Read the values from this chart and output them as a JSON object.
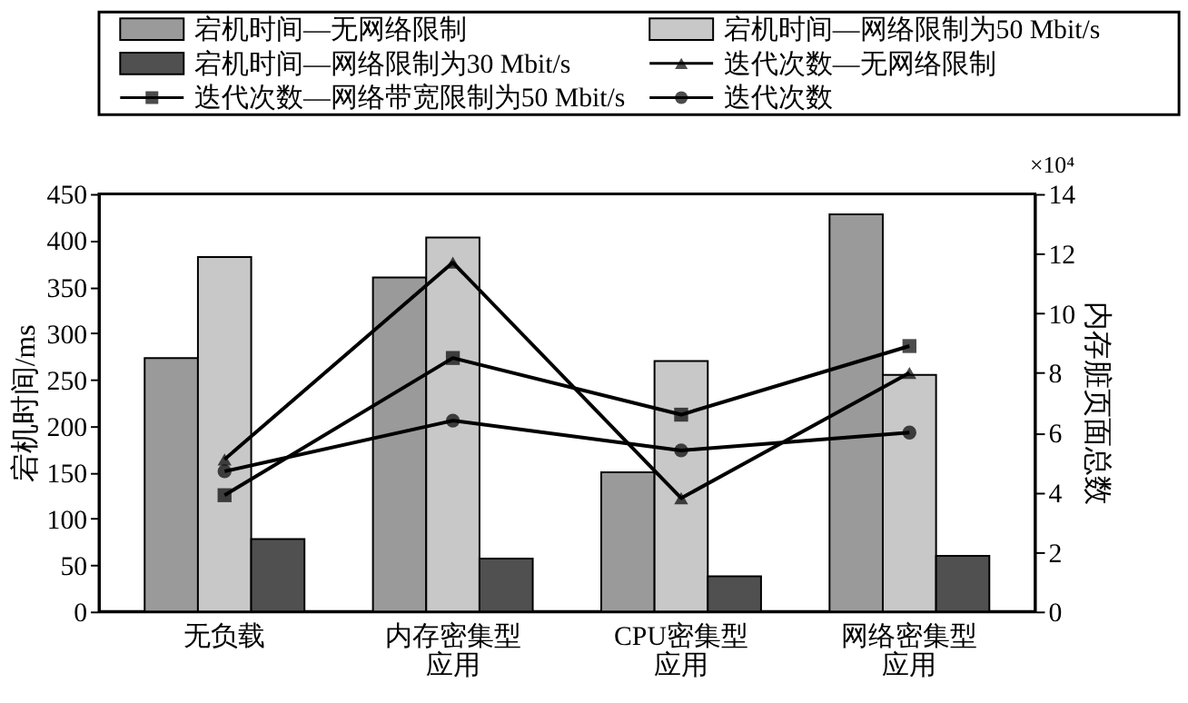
{
  "chart_data": {
    "type": "bar",
    "categories": [
      "无负载",
      "内存密集型应用",
      "CPU密集型应用",
      "网络密集型应用"
    ],
    "ylabel": "宕机时间/ms",
    "y2label": "内存脏页面总数",
    "ylim": [
      0,
      450
    ],
    "yticks": [
      0,
      50,
      100,
      150,
      200,
      250,
      300,
      350,
      400,
      450
    ],
    "y2lim": [
      0,
      14
    ],
    "y2ticks": [
      0,
      2,
      4,
      6,
      8,
      10,
      12,
      14
    ],
    "annotations": [
      "×10⁴"
    ],
    "legend": "top",
    "grid": false,
    "series": [
      {
        "name": "宕机时间—无网络限制",
        "color": "#9a9a9a",
        "values": [
          273,
          360,
          150,
          428
        ]
      },
      {
        "name": "宕机时间—网络限制为50 Mbit/s",
        "color": "#c8c8c8",
        "values": [
          382,
          403,
          270,
          255
        ]
      },
      {
        "name": "宕机时间—网络限制为30 Mbit/s",
        "color": "#505050",
        "values": [
          78,
          57,
          38,
          60
        ]
      },
      {
        "name": "迭代次数—无网络限制",
        "type": "line",
        "axis": "y2",
        "marker": "triangle",
        "color": "#000000",
        "values": [
          5.1,
          11.7,
          3.8,
          8.0
        ]
      },
      {
        "name": "迭代次数—网络带宽限制为50 Mbit/s",
        "type": "line",
        "axis": "y2",
        "marker": "square",
        "color": "#000000",
        "values": [
          3.9,
          8.5,
          6.6,
          8.9
        ]
      },
      {
        "name": "迭代次数",
        "type": "line",
        "axis": "y2",
        "marker": "circle",
        "color": "#000000",
        "values": [
          4.7,
          6.4,
          5.4,
          6.0
        ]
      }
    ]
  }
}
